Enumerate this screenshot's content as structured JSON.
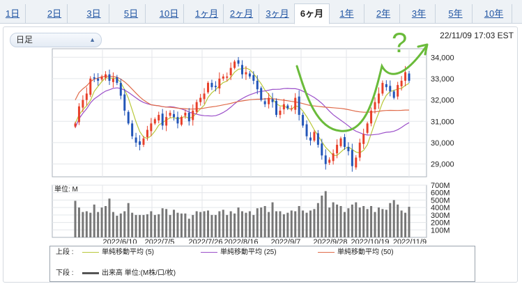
{
  "tabs": [
    {
      "label": "1日"
    },
    {
      "label": "2日"
    },
    {
      "label": "3日"
    },
    {
      "label": "5日"
    },
    {
      "label": "10日"
    },
    {
      "label": "1ヶ月"
    },
    {
      "label": "2ヶ月"
    },
    {
      "label": "3ヶ月"
    },
    {
      "label": "6ヶ月"
    },
    {
      "label": "1年"
    },
    {
      "label": "2年"
    },
    {
      "label": "3年"
    },
    {
      "label": "5年"
    },
    {
      "label": "10年"
    }
  ],
  "active_tab": "6ヶ月",
  "selector": {
    "label": "日足"
  },
  "timestamp": "22/11/09 17:03 EST",
  "annotation": {
    "symbol": "?"
  },
  "colors": {
    "up": "#e8402a",
    "down": "#2255b8",
    "ma5": "#b9c83a",
    "ma25": "#9b4fc9",
    "ma50": "#e06b4a",
    "annotation": "#6abb3a",
    "volume": "#777777"
  },
  "chart_data": [
    {
      "type": "candlestick",
      "title": "",
      "y_ticks": [
        "29,000",
        "30,000",
        "31,000",
        "32,000",
        "33,000",
        "34,000"
      ],
      "ylim": [
        28400,
        34400
      ],
      "x_ticks": [
        "2022/6/10",
        "2022/7/5",
        "2022/7/26",
        "2022/8/16",
        "2022/9/7",
        "2022/9/28",
        "2022/10/19",
        "2022/11/9"
      ],
      "close_approx": [
        30900,
        31700,
        32000,
        32300,
        33000,
        33000,
        32900,
        33100,
        33200,
        32900,
        33000,
        32800,
        32200,
        31500,
        30900,
        30300,
        30000,
        29900,
        30200,
        30600,
        30900,
        31100,
        31300,
        30800,
        31200,
        31400,
        31200,
        30900,
        31200,
        31400,
        31000,
        31500,
        31900,
        32100,
        32300,
        32800,
        32600,
        32600,
        33000,
        33100,
        33100,
        33500,
        33800,
        33700,
        33200,
        33300,
        33100,
        32900,
        32500,
        32000,
        31800,
        32100,
        31900,
        31300,
        31500,
        31800,
        31600,
        31600,
        32100,
        31300,
        30800,
        30300,
        30100,
        30500,
        29900,
        29400,
        29000,
        29200,
        29500,
        29900,
        30200,
        29800,
        29600,
        28900,
        29300,
        30000,
        30400,
        30900,
        31500,
        31900,
        32300,
        32800,
        32600,
        32400,
        32100,
        32700,
        32900,
        33300,
        32900
      ]
    },
    {
      "type": "bar",
      "title": "単位: M",
      "y_ticks": [
        "100M",
        "200M",
        "300M",
        "400M",
        "500M",
        "600M",
        "700M"
      ],
      "ylim": [
        0,
        700
      ],
      "values_approx": [
        490,
        400,
        340,
        350,
        330,
        440,
        340,
        400,
        420,
        520,
        340,
        290,
        320,
        350,
        460,
        330,
        300,
        300,
        300,
        310,
        350,
        300,
        310,
        390,
        380,
        300,
        370,
        330,
        320,
        320,
        250,
        300,
        350,
        340,
        350,
        360,
        300,
        300,
        350,
        370,
        300,
        350,
        320,
        400,
        350,
        330,
        350,
        300,
        390,
        400,
        420,
        340,
        470,
        350,
        350,
        310,
        330,
        360,
        350,
        420,
        360,
        330,
        360,
        380,
        460,
        560,
        620,
        400,
        470,
        440,
        420,
        340,
        390,
        440,
        470,
        400,
        420,
        380,
        420,
        340,
        400,
        380,
        370,
        460,
        500,
        440,
        360,
        330,
        410
      ]
    }
  ],
  "legend": {
    "upper_label": "上段 :",
    "ma5": "単純移動平均 (5)",
    "ma25": "単純移動平均 (25)",
    "ma50": "単純移動平均 (50)",
    "lower_label": "下段 :",
    "volume": "出来高 単位:(M株/口/枚)"
  }
}
